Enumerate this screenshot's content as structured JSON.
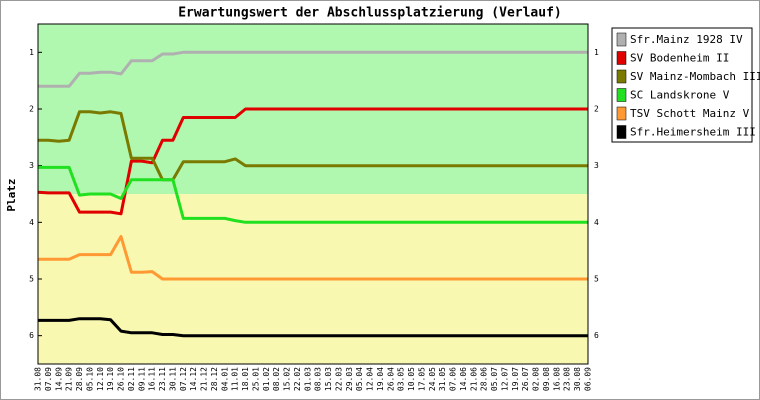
{
  "chart_data": {
    "type": "line",
    "title": "Erwartungswert der Abschlussplatzierung (Verlauf)",
    "y_label": "Platz",
    "categories": [
      "31.08",
      "07.09",
      "14.09",
      "21.09",
      "28.09",
      "05.10",
      "12.10",
      "19.10",
      "26.10",
      "02.11",
      "09.11",
      "16.11",
      "23.11",
      "30.11",
      "07.12",
      "14.12",
      "21.12",
      "28.12",
      "04.01",
      "11.01",
      "18.01",
      "25.01",
      "01.02",
      "08.02",
      "15.02",
      "22.02",
      "01.03",
      "08.03",
      "15.03",
      "22.03",
      "29.03",
      "05.04",
      "12.04",
      "19.04",
      "26.04",
      "03.05",
      "10.05",
      "17.05",
      "24.05",
      "31.05",
      "07.06",
      "14.06",
      "21.06",
      "28.06",
      "05.07",
      "12.07",
      "19.07",
      "26.07",
      "02.08",
      "09.08",
      "16.08",
      "23.08",
      "30.08",
      "06.09"
    ],
    "ylim": [
      0.5,
      6.5
    ],
    "y_inverted": true,
    "yticks": [
      1,
      2,
      3,
      4,
      5,
      6
    ],
    "bands": [
      {
        "from": 0.5,
        "to": 3.5,
        "color": "#b0f8b0"
      },
      {
        "from": 3.5,
        "to": 6.5,
        "color": "#f8f8b0"
      }
    ],
    "legend": "right",
    "series": [
      {
        "name": "Sfr.Mainz 1928 IV",
        "color": "#b0b0b0",
        "values": [
          1.6,
          1.6,
          1.6,
          1.6,
          1.37,
          1.37,
          1.35,
          1.35,
          1.38,
          1.15,
          1.15,
          1.15,
          1.03,
          1.03,
          1,
          1,
          1,
          1,
          1,
          1,
          1,
          1,
          1,
          1,
          1,
          1,
          1,
          1,
          1,
          1,
          1,
          1,
          1,
          1,
          1,
          1,
          1,
          1,
          1,
          1,
          1,
          1,
          1,
          1,
          1,
          1,
          1,
          1,
          1,
          1,
          1,
          1,
          1,
          1
        ]
      },
      {
        "name": "SV Bodenheim II",
        "color": "#e00000",
        "values": [
          3.47,
          3.48,
          3.48,
          3.48,
          3.82,
          3.82,
          3.82,
          3.82,
          3.85,
          2.92,
          2.92,
          2.95,
          2.55,
          2.55,
          2.15,
          2.15,
          2.15,
          2.15,
          2.15,
          2.15,
          2,
          2,
          2,
          2,
          2,
          2,
          2,
          2,
          2,
          2,
          2,
          2,
          2,
          2,
          2,
          2,
          2,
          2,
          2,
          2,
          2,
          2,
          2,
          2,
          2,
          2,
          2,
          2,
          2,
          2,
          2,
          2,
          2,
          2
        ]
      },
      {
        "name": "SV Mainz-Mombach III",
        "color": "#7a7a00",
        "values": [
          2.55,
          2.55,
          2.57,
          2.55,
          2.05,
          2.05,
          2.07,
          2.05,
          2.08,
          2.87,
          2.87,
          2.87,
          3.25,
          3.25,
          2.93,
          2.93,
          2.93,
          2.93,
          2.93,
          2.88,
          3,
          3,
          3,
          3,
          3,
          3,
          3,
          3,
          3,
          3,
          3,
          3,
          3,
          3,
          3,
          3,
          3,
          3,
          3,
          3,
          3,
          3,
          3,
          3,
          3,
          3,
          3,
          3,
          3,
          3,
          3,
          3,
          3,
          3
        ]
      },
      {
        "name": "SC Landskrone V",
        "color": "#20e020",
        "values": [
          3.03,
          3.03,
          3.03,
          3.03,
          3.52,
          3.5,
          3.5,
          3.5,
          3.58,
          3.25,
          3.25,
          3.25,
          3.25,
          3.25,
          3.93,
          3.93,
          3.93,
          3.93,
          3.93,
          3.97,
          4,
          4,
          4,
          4,
          4,
          4,
          4,
          4,
          4,
          4,
          4,
          4,
          4,
          4,
          4,
          4,
          4,
          4,
          4,
          4,
          4,
          4,
          4,
          4,
          4,
          4,
          4,
          4,
          4,
          4,
          4,
          4,
          4,
          4
        ]
      },
      {
        "name": "TSV Schott Mainz V",
        "color": "#ff9933",
        "values": [
          4.65,
          4.65,
          4.65,
          4.65,
          4.57,
          4.57,
          4.57,
          4.57,
          4.25,
          4.88,
          4.88,
          4.87,
          5,
          5,
          5,
          5,
          5,
          5,
          5,
          5,
          5,
          5,
          5,
          5,
          5,
          5,
          5,
          5,
          5,
          5,
          5,
          5,
          5,
          5,
          5,
          5,
          5,
          5,
          5,
          5,
          5,
          5,
          5,
          5,
          5,
          5,
          5,
          5,
          5,
          5,
          5,
          5,
          5,
          5
        ]
      },
      {
        "name": "Sfr.Heimersheim III",
        "color": "#000000",
        "values": [
          5.73,
          5.73,
          5.73,
          5.73,
          5.7,
          5.7,
          5.7,
          5.72,
          5.92,
          5.95,
          5.95,
          5.95,
          5.98,
          5.98,
          6,
          6,
          6,
          6,
          6,
          6,
          6,
          6,
          6,
          6,
          6,
          6,
          6,
          6,
          6,
          6,
          6,
          6,
          6,
          6,
          6,
          6,
          6,
          6,
          6,
          6,
          6,
          6,
          6,
          6,
          6,
          6,
          6,
          6,
          6,
          6,
          6,
          6,
          6,
          6
        ]
      }
    ]
  }
}
